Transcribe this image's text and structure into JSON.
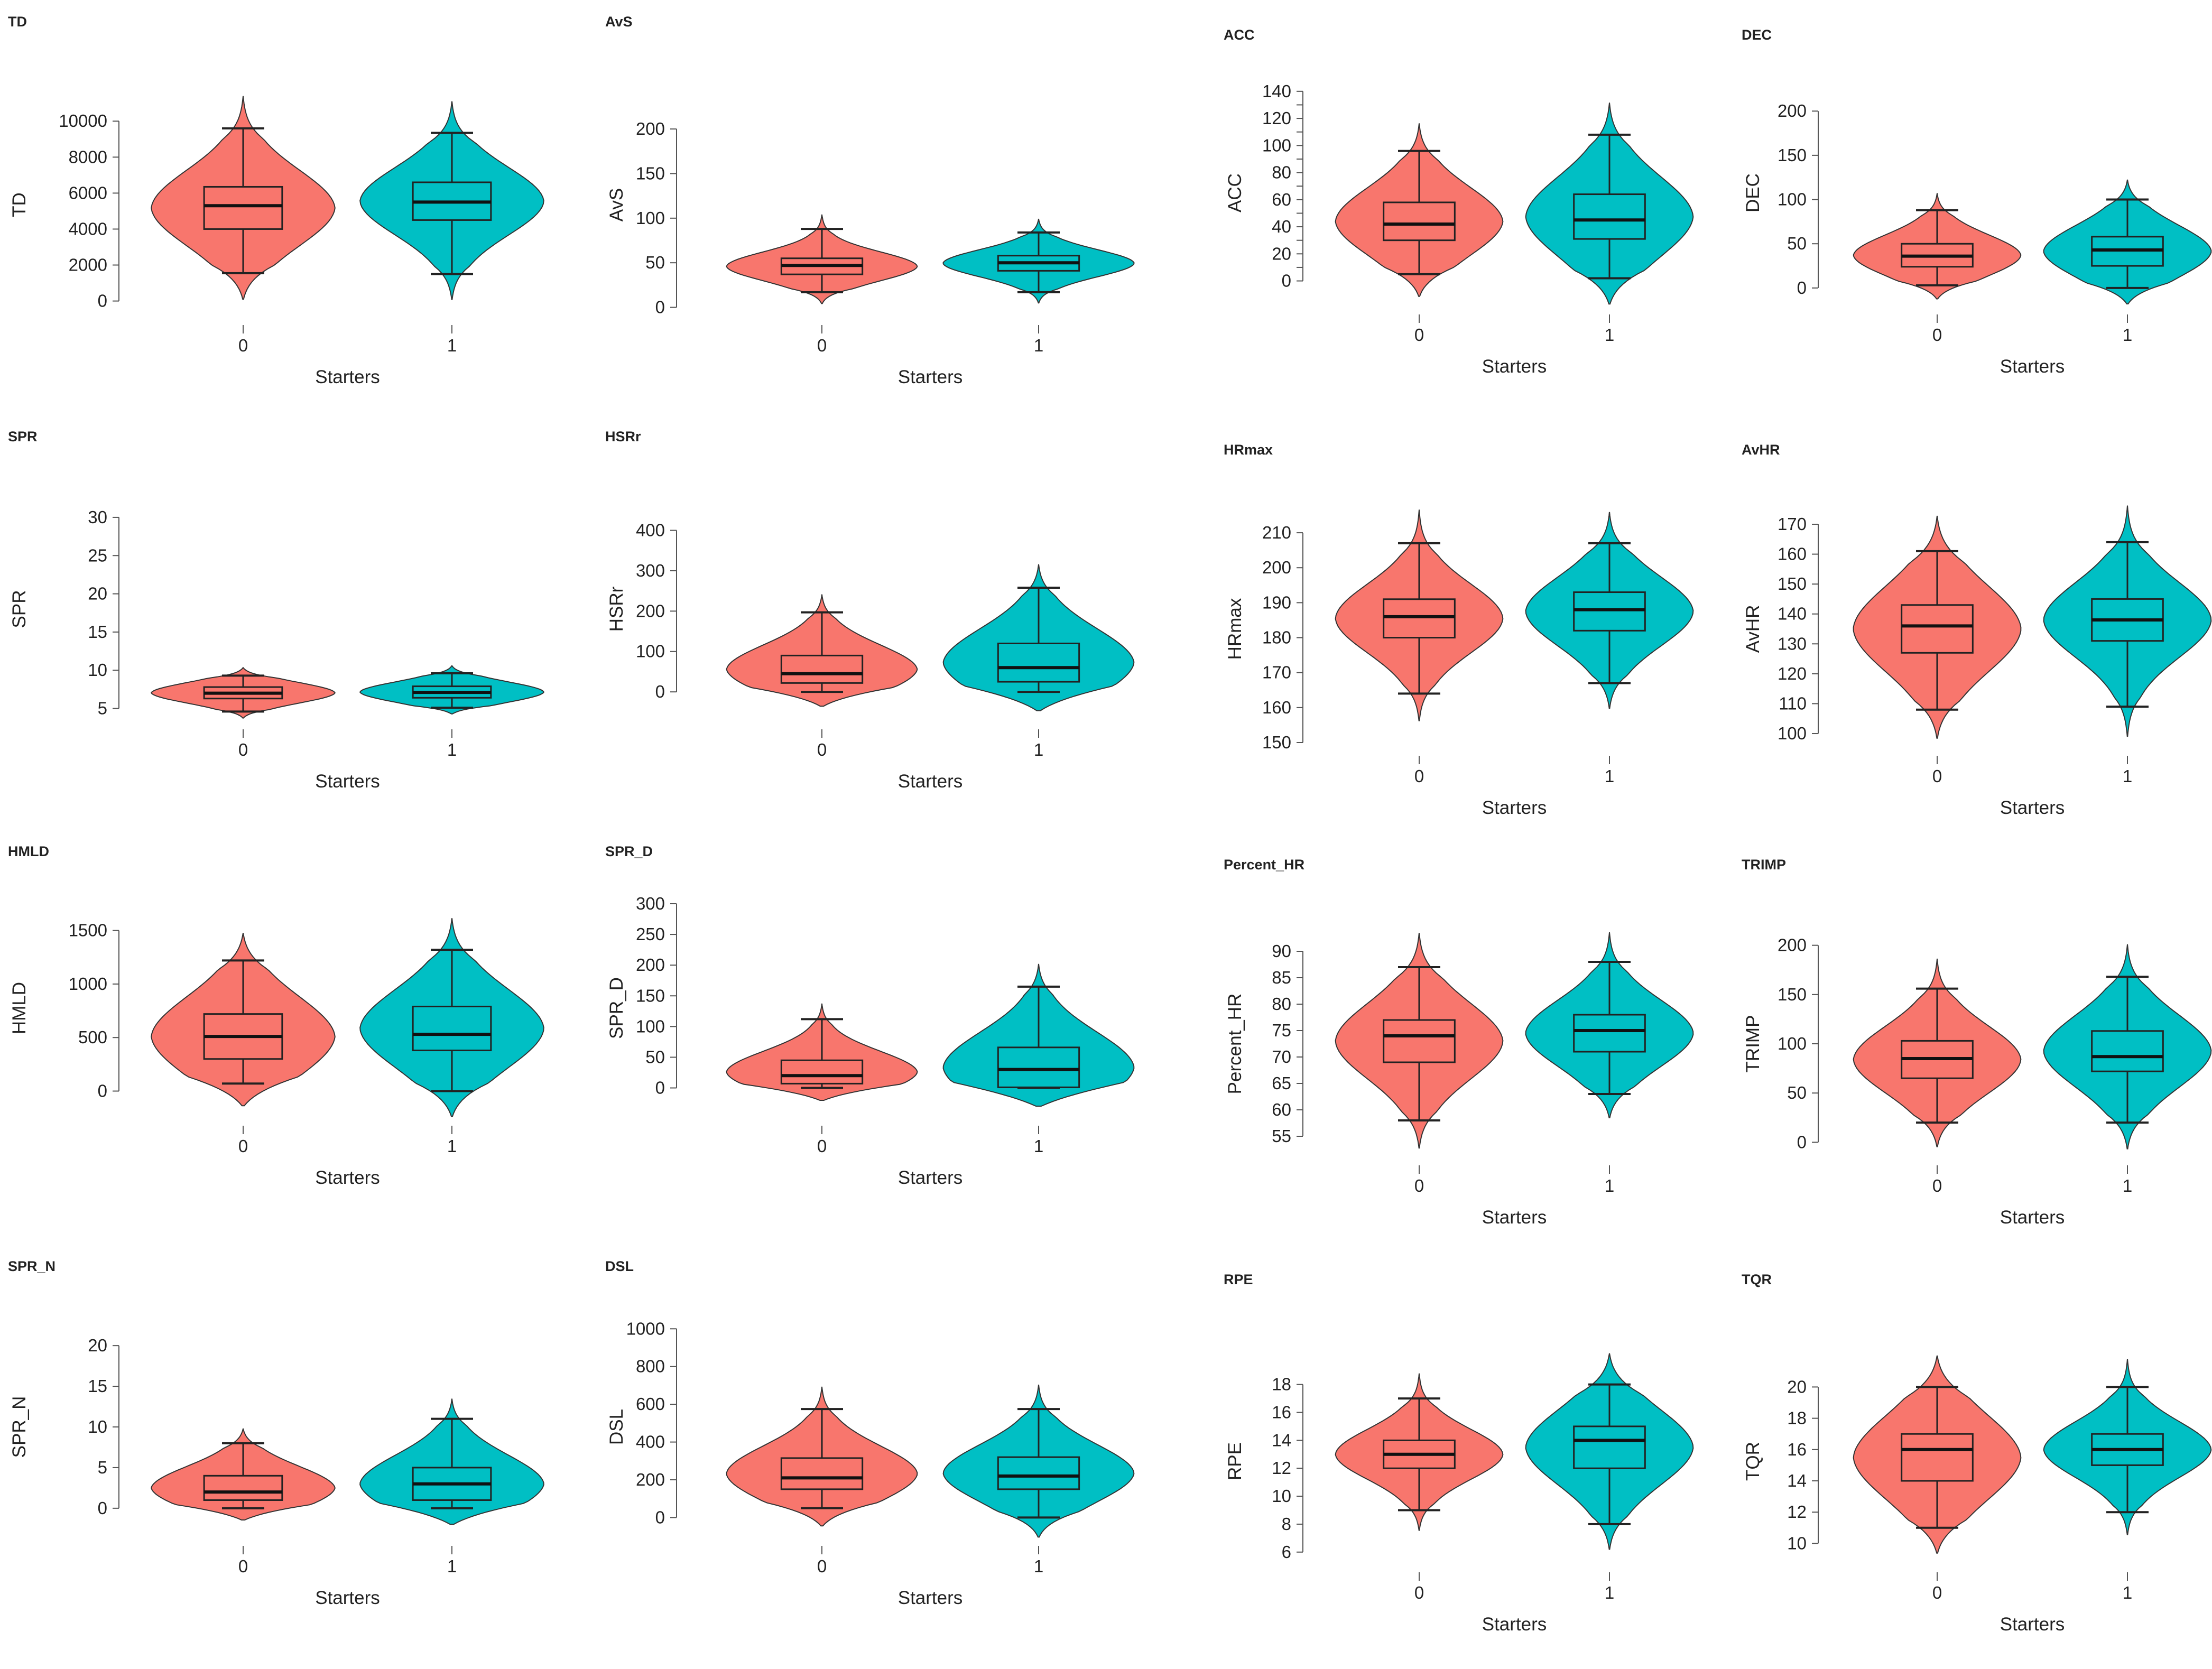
{
  "colors": {
    "group0": "#f8766d",
    "group1": "#00bfc4",
    "outline": "#333333",
    "axis": "#555555"
  },
  "chart_data": [
    {
      "type": "violin",
      "title": "TD",
      "ylabel": "TD",
      "xlabel": "Starters",
      "categories": [
        "0",
        "1"
      ],
      "yticks": [
        0,
        2000,
        4000,
        6000,
        8000,
        10000
      ],
      "ylim": [
        -600,
        11300
      ],
      "groups": [
        {
          "name": "0",
          "min": 1550,
          "q1": 4000,
          "median": 5300,
          "q3": 6350,
          "max": 9600
        },
        {
          "name": "1",
          "min": 1500,
          "q1": 4500,
          "median": 5500,
          "q3": 6600,
          "max": 9350
        }
      ]
    },
    {
      "type": "violin",
      "title": "AvS",
      "ylabel": "AvS",
      "xlabel": "Starters",
      "categories": [
        "0",
        "1"
      ],
      "yticks": [
        0,
        50,
        100,
        150,
        200
      ],
      "ylim": [
        -5,
        235
      ],
      "groups": [
        {
          "name": "0",
          "min": 17,
          "q1": 37,
          "median": 47,
          "q3": 55,
          "max": 88
        },
        {
          "name": "1",
          "min": 17,
          "q1": 41,
          "median": 50,
          "q3": 58,
          "max": 84
        }
      ]
    },
    {
      "type": "violin",
      "title": "ACC",
      "ylabel": "ACC",
      "xlabel": "Starters",
      "categories": [
        "0",
        "1"
      ],
      "yticks": [
        0,
        10,
        20,
        30,
        40,
        50,
        60,
        70,
        80,
        90,
        100,
        110,
        120,
        130,
        140
      ],
      "ytick_labels": [
        "0",
        "20",
        "40",
        "60",
        "80",
        "100",
        "120",
        "140"
      ],
      "ylim": [
        -15,
        145
      ],
      "groups": [
        {
          "name": "0",
          "min": 5,
          "q1": 30,
          "median": 42,
          "q3": 58,
          "max": 96
        },
        {
          "name": "1",
          "min": 2,
          "q1": 31,
          "median": 45,
          "q3": 64,
          "max": 108
        }
      ]
    },
    {
      "type": "violin",
      "title": "DEC",
      "ylabel": "DEC",
      "xlabel": "Starters",
      "categories": [
        "0",
        "1"
      ],
      "yticks": [
        0,
        50,
        100,
        150,
        200
      ],
      "ylim": [
        -15,
        230
      ],
      "groups": [
        {
          "name": "0",
          "min": 3,
          "q1": 24,
          "median": 36,
          "q3": 50,
          "max": 88
        },
        {
          "name": "1",
          "min": 0,
          "q1": 25,
          "median": 43,
          "q3": 58,
          "max": 100
        }
      ]
    },
    {
      "type": "violin",
      "title": "SPR",
      "ylabel": "SPR",
      "xlabel": "Starters",
      "categories": [
        "0",
        "1"
      ],
      "yticks": [
        5,
        10,
        15,
        20,
        25,
        30
      ],
      "ylim": [
        4,
        32
      ],
      "groups": [
        {
          "name": "0",
          "min": 4.6,
          "q1": 6.3,
          "median": 7.0,
          "q3": 7.8,
          "max": 9.3
        },
        {
          "name": "1",
          "min": 5.1,
          "q1": 6.4,
          "median": 7.1,
          "q3": 7.9,
          "max": 9.6
        }
      ]
    },
    {
      "type": "violin",
      "title": "HSRr",
      "ylabel": "HSRr",
      "xlabel": "Starters",
      "categories": [
        "0",
        "1"
      ],
      "yticks": [
        0,
        100,
        200,
        300,
        400
      ],
      "ylim": [
        -60,
        470
      ],
      "groups": [
        {
          "name": "0",
          "min": 0,
          "q1": 22,
          "median": 45,
          "q3": 90,
          "max": 197
        },
        {
          "name": "1",
          "min": 0,
          "q1": 25,
          "median": 60,
          "q3": 120,
          "max": 258
        }
      ]
    },
    {
      "type": "violin",
      "title": "HRmax",
      "ylabel": "HRmax",
      "xlabel": "Starters",
      "categories": [
        "0",
        "1"
      ],
      "yticks": [
        150,
        160,
        170,
        180,
        190,
        200,
        210
      ],
      "ylim": [
        150,
        215
      ],
      "groups": [
        {
          "name": "0",
          "min": 164,
          "q1": 180,
          "median": 186,
          "q3": 191,
          "max": 207
        },
        {
          "name": "1",
          "min": 167,
          "q1": 182,
          "median": 188,
          "q3": 193,
          "max": 207
        }
      ]
    },
    {
      "type": "violin",
      "title": "AvHR",
      "ylabel": "AvHR",
      "xlabel": "Starters",
      "categories": [
        "0",
        "1"
      ],
      "yticks": [
        100,
        110,
        120,
        130,
        140,
        150,
        160,
        170
      ],
      "ylim": [
        97,
        173
      ],
      "groups": [
        {
          "name": "0",
          "min": 108,
          "q1": 127,
          "median": 136,
          "q3": 143,
          "max": 161
        },
        {
          "name": "1",
          "min": 109,
          "q1": 131,
          "median": 138,
          "q3": 145,
          "max": 164
        }
      ]
    },
    {
      "type": "violin",
      "title": "HMLD",
      "ylabel": "HMLD",
      "xlabel": "Starters",
      "categories": [
        "0",
        "1"
      ],
      "yticks": [
        0,
        500,
        1000,
        1500
      ],
      "ylim": [
        -200,
        1750
      ],
      "groups": [
        {
          "name": "0",
          "min": 70,
          "q1": 300,
          "median": 510,
          "q3": 720,
          "max": 1220
        },
        {
          "name": "1",
          "min": 0,
          "q1": 380,
          "median": 530,
          "q3": 790,
          "max": 1320
        }
      ]
    },
    {
      "type": "violin",
      "title": "SPR_D",
      "ylabel": "SPR_D",
      "xlabel": "Starters",
      "categories": [
        "0",
        "1"
      ],
      "yticks": [
        0,
        50,
        100,
        150,
        200,
        250,
        300
      ],
      "ylim": [
        -40,
        300
      ],
      "groups": [
        {
          "name": "0",
          "min": 0,
          "q1": 7,
          "median": 20,
          "q3": 45,
          "max": 112
        },
        {
          "name": "1",
          "min": 0,
          "q1": 1,
          "median": 30,
          "q3": 66,
          "max": 165
        }
      ]
    },
    {
      "type": "violin",
      "title": "Percent_HR",
      "ylabel": "Percent_HR",
      "xlabel": "Starters",
      "categories": [
        "0",
        "1"
      ],
      "yticks": [
        55,
        60,
        65,
        70,
        75,
        80,
        85,
        90
      ],
      "ylim": [
        52,
        93
      ],
      "groups": [
        {
          "name": "0",
          "min": 58,
          "q1": 69,
          "median": 74,
          "q3": 77,
          "max": 87
        },
        {
          "name": "1",
          "min": 63,
          "q1": 71,
          "median": 75,
          "q3": 78,
          "max": 88
        }
      ]
    },
    {
      "type": "violin",
      "title": "TRIMP",
      "ylabel": "TRIMP",
      "xlabel": "Starters",
      "categories": [
        "0",
        "1"
      ],
      "yticks": [
        0,
        50,
        100,
        150,
        200
      ],
      "ylim": [
        -10,
        210
      ],
      "groups": [
        {
          "name": "0",
          "min": 20,
          "q1": 65,
          "median": 85,
          "q3": 103,
          "max": 156
        },
        {
          "name": "1",
          "min": 20,
          "q1": 72,
          "median": 87,
          "q3": 113,
          "max": 168
        }
      ]
    },
    {
      "type": "violin",
      "title": "SPR_N",
      "ylabel": "SPR_N",
      "xlabel": "Starters",
      "categories": [
        "0",
        "1"
      ],
      "yticks": [
        0,
        5,
        10,
        15,
        20
      ],
      "ylim": [
        -3,
        23
      ],
      "groups": [
        {
          "name": "0",
          "min": 0,
          "q1": 1,
          "median": 2,
          "q3": 4,
          "max": 8
        },
        {
          "name": "1",
          "min": 0,
          "q1": 1,
          "median": 3,
          "q3": 5,
          "max": 11
        }
      ]
    },
    {
      "type": "violin",
      "title": "DSL",
      "ylabel": "DSL",
      "xlabel": "Starters",
      "categories": [
        "0",
        "1"
      ],
      "yticks": [
        0,
        200,
        400,
        600,
        800,
        1000
      ],
      "ylim": [
        -80,
        1040
      ],
      "groups": [
        {
          "name": "0",
          "min": 50,
          "q1": 150,
          "median": 210,
          "q3": 315,
          "max": 575
        },
        {
          "name": "1",
          "min": 0,
          "q1": 150,
          "median": 220,
          "q3": 320,
          "max": 575
        }
      ]
    },
    {
      "type": "violin",
      "title": "RPE",
      "ylabel": "RPE",
      "xlabel": "Starters",
      "categories": [
        "0",
        "1"
      ],
      "yticks": [
        6,
        8,
        10,
        12,
        14,
        16,
        18
      ],
      "ylim": [
        5.5,
        19.5
      ],
      "groups": [
        {
          "name": "0",
          "min": 9,
          "q1": 12,
          "median": 13,
          "q3": 14,
          "max": 17
        },
        {
          "name": "1",
          "min": 8,
          "q1": 12,
          "median": 14,
          "q3": 15,
          "max": 18
        }
      ]
    },
    {
      "type": "violin",
      "title": "TQR",
      "ylabel": "TQR",
      "xlabel": "Starters",
      "categories": [
        "0",
        "1"
      ],
      "yticks": [
        10,
        12,
        14,
        16,
        18,
        20
      ],
      "ylim": [
        9,
        21.5
      ],
      "groups": [
        {
          "name": "0",
          "min": 11,
          "q1": 14,
          "median": 16,
          "q3": 17,
          "max": 20
        },
        {
          "name": "1",
          "min": 12,
          "q1": 15,
          "median": 16,
          "q3": 17,
          "max": 20
        }
      ]
    }
  ]
}
